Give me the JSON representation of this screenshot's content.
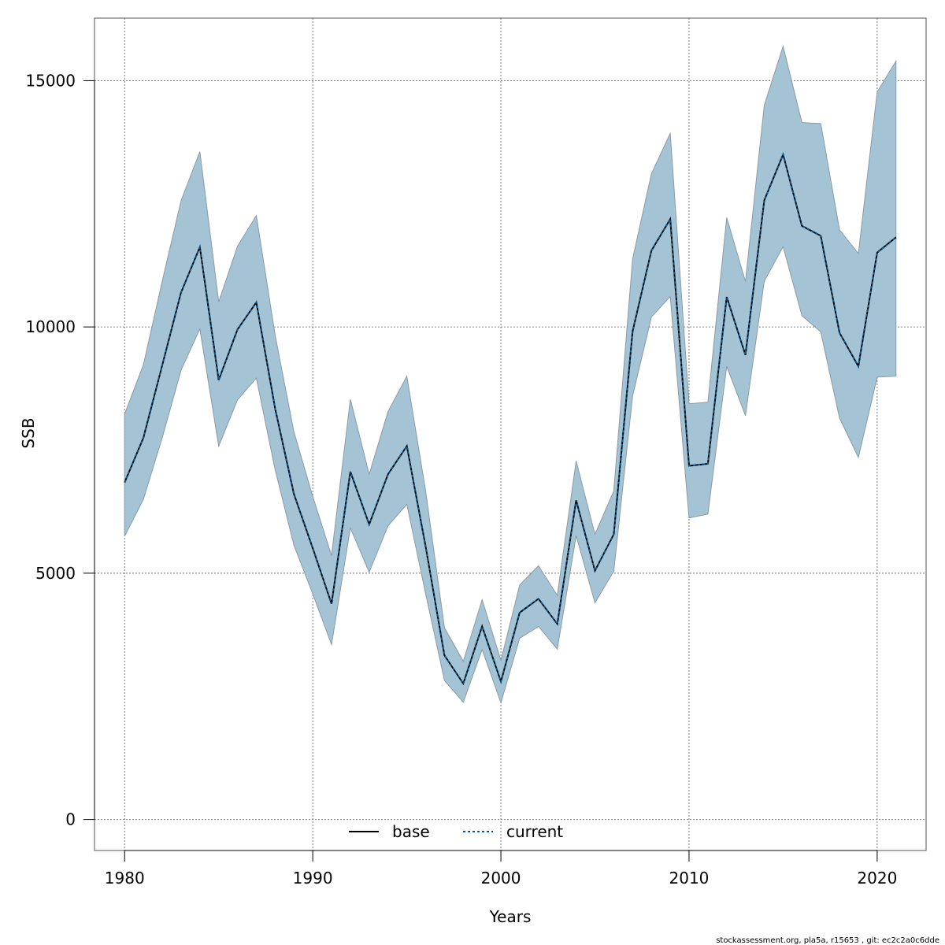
{
  "chart_data": {
    "type": "line",
    "xlabel": "Years",
    "ylabel": "SSB",
    "xlim": [
      1978.4,
      2022.6
    ],
    "ylim": [
      -630,
      16270
    ],
    "xticks": [
      1980,
      1990,
      2000,
      2010,
      2020
    ],
    "yticks": [
      0,
      5000,
      10000,
      15000
    ],
    "grid": true,
    "legend_position": "bottom-center",
    "x": [
      1980,
      1981,
      1982,
      1983,
      1984,
      1985,
      1986,
      1987,
      1988,
      1989,
      1990,
      1991,
      1992,
      1993,
      1994,
      1995,
      1996,
      1997,
      1998,
      1999,
      2000,
      2001,
      2002,
      2003,
      2004,
      2005,
      2006,
      2007,
      2008,
      2009,
      2010,
      2011,
      2012,
      2013,
      2014,
      2015,
      2016,
      2017,
      2018,
      2019,
      2020,
      2021
    ],
    "band": {
      "color": "#a4c4d6",
      "lower": [
        5750,
        6500,
        7750,
        9120,
        9960,
        7580,
        8520,
        8960,
        7100,
        5570,
        4580,
        3550,
        5920,
        5020,
        5960,
        6400,
        4580,
        2820,
        2380,
        3450,
        2370,
        3680,
        3920,
        3460,
        5760,
        4400,
        5040,
        8600,
        10200,
        10620,
        6120,
        6200,
        9200,
        8200,
        10930,
        11630,
        10230,
        9900,
        8150,
        7350,
        8980,
        9000
      ],
      "upper": [
        8230,
        9230,
        10930,
        12560,
        13560,
        10510,
        11640,
        12260,
        9830,
        7870,
        6560,
        5360,
        8530,
        7010,
        8280,
        9000,
        6670,
        3890,
        3210,
        4460,
        3230,
        4760,
        5150,
        4550,
        7280,
        5790,
        6670,
        11380,
        13110,
        13930,
        8440,
        8470,
        12220,
        10920,
        14500,
        15700,
        14150,
        14130,
        11970,
        11490,
        14770,
        15400
      ]
    },
    "series": [
      {
        "name": "base",
        "color": "#000000",
        "dash": "none",
        "values": [
          6840,
          7750,
          9220,
          10700,
          11620,
          8920,
          9950,
          10500,
          8340,
          6610,
          5510,
          4380,
          7060,
          5990,
          7010,
          7580,
          5540,
          3330,
          2760,
          3920,
          2800,
          4200,
          4480,
          3970,
          6480,
          5050,
          5790,
          9910,
          11550,
          12190,
          7180,
          7220,
          10610,
          9430,
          12570,
          13500,
          12050,
          11850,
          9880,
          9200,
          11510,
          11820
        ]
      },
      {
        "name": "current",
        "color": "#0a5a8a",
        "dash": "3,3",
        "values": [
          6840,
          7750,
          9220,
          10700,
          11620,
          8920,
          9950,
          10500,
          8340,
          6610,
          5510,
          4380,
          7060,
          5990,
          7010,
          7580,
          5540,
          3330,
          2760,
          3920,
          2800,
          4200,
          4480,
          3970,
          6480,
          5050,
          5790,
          9910,
          11550,
          12190,
          7180,
          7220,
          10610,
          9430,
          12570,
          13500,
          12050,
          11850,
          9880,
          9200,
          11510,
          11820
        ]
      }
    ]
  },
  "footer": {
    "text": "stockassessment.org, pla5a, r15653 , git: ec2c2a0c6dde"
  }
}
